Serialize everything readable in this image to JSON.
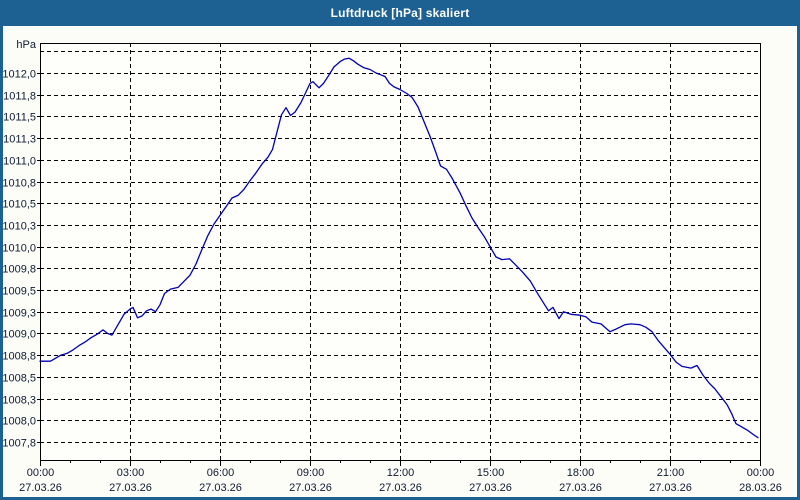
{
  "window": {
    "title": "Luftdruck [hPa] skaliert"
  },
  "colors": {
    "frame": "#1d6193",
    "titlebar": "#1d6193",
    "title_text": "#ffffff",
    "background": "#fdfdf8",
    "plot_background": "#fefefb",
    "gridline": "#000000",
    "plot_border": "#000000",
    "curve": "#0000b2",
    "axis_text": "#0e1b33"
  },
  "chart_data": {
    "type": "line",
    "title": "Luftdruck [hPa] skaliert",
    "y_unit_label": "hPa",
    "series_name": "Luftdruck",
    "grid": "dashed, both axes",
    "legend": "none",
    "y_axis": {
      "tick_step_hpa": 0.25,
      "top_unlabeled_gridline": 1012.25,
      "tick_values": [
        1012.0,
        1011.75,
        1011.5,
        1011.25,
        1011.0,
        1010.75,
        1010.5,
        1010.25,
        1010.0,
        1009.75,
        1009.5,
        1009.25,
        1009.0,
        1008.75,
        1008.5,
        1008.25,
        1008.0,
        1007.75
      ],
      "tick_labels": [
        "1012,0",
        "1011,8",
        "1011,5",
        "1011,3",
        "1011,0",
        "1010,8",
        "1010,5",
        "1010,3",
        "1010,0",
        "1009,8",
        "1009,5",
        "1009,3",
        "1009,0",
        "1008,8",
        "1008,5",
        "1008,3",
        "1008,0",
        "1007,8"
      ]
    },
    "x_axis": {
      "hours_span": 24,
      "major_step_hours": 3,
      "minor_step_hours": 1,
      "ticks": [
        {
          "hour": 0,
          "time": "00:00",
          "date": "27.03.26"
        },
        {
          "hour": 3,
          "time": "03:00",
          "date": "27.03.26"
        },
        {
          "hour": 6,
          "time": "06:00",
          "date": "27.03.26"
        },
        {
          "hour": 9,
          "time": "09:00",
          "date": "27.03.26"
        },
        {
          "hour": 12,
          "time": "12:00",
          "date": "27.03.26"
        },
        {
          "hour": 15,
          "time": "15:00",
          "date": "27.03.26"
        },
        {
          "hour": 18,
          "time": "18:00",
          "date": "27.03.26"
        },
        {
          "hour": 21,
          "time": "21:00",
          "date": "27.03.26"
        },
        {
          "hour": 24,
          "time": "00:00",
          "date": "28.03.26"
        }
      ]
    },
    "points": [
      [
        0.0,
        1008.68
      ],
      [
        0.35,
        1008.68
      ],
      [
        0.55,
        1008.72
      ],
      [
        0.7,
        1008.75
      ],
      [
        0.9,
        1008.77
      ],
      [
        1.1,
        1008.81
      ],
      [
        1.3,
        1008.86
      ],
      [
        1.5,
        1008.9
      ],
      [
        1.7,
        1008.95
      ],
      [
        1.9,
        1008.99
      ],
      [
        2.1,
        1009.04
      ],
      [
        2.25,
        1009.0
      ],
      [
        2.4,
        1008.98
      ],
      [
        2.6,
        1009.1
      ],
      [
        2.8,
        1009.22
      ],
      [
        3.0,
        1009.28
      ],
      [
        3.1,
        1009.3
      ],
      [
        3.25,
        1009.18
      ],
      [
        3.4,
        1009.2
      ],
      [
        3.55,
        1009.26
      ],
      [
        3.7,
        1009.28
      ],
      [
        3.85,
        1009.25
      ],
      [
        4.0,
        1009.33
      ],
      [
        4.15,
        1009.46
      ],
      [
        4.35,
        1009.51
      ],
      [
        4.6,
        1009.53
      ],
      [
        4.8,
        1009.6
      ],
      [
        5.0,
        1009.67
      ],
      [
        5.2,
        1009.8
      ],
      [
        5.4,
        1009.97
      ],
      [
        5.6,
        1010.13
      ],
      [
        5.8,
        1010.26
      ],
      [
        6.0,
        1010.36
      ],
      [
        6.2,
        1010.46
      ],
      [
        6.4,
        1010.56
      ],
      [
        6.6,
        1010.59
      ],
      [
        6.8,
        1010.66
      ],
      [
        7.0,
        1010.76
      ],
      [
        7.2,
        1010.85
      ],
      [
        7.4,
        1010.95
      ],
      [
        7.6,
        1011.03
      ],
      [
        7.75,
        1011.12
      ],
      [
        7.9,
        1011.32
      ],
      [
        8.05,
        1011.52
      ],
      [
        8.2,
        1011.6
      ],
      [
        8.35,
        1011.51
      ],
      [
        8.5,
        1011.55
      ],
      [
        8.7,
        1011.66
      ],
      [
        8.85,
        1011.77
      ],
      [
        9.0,
        1011.88
      ],
      [
        9.1,
        1011.9
      ],
      [
        9.3,
        1011.83
      ],
      [
        9.45,
        1011.88
      ],
      [
        9.6,
        1011.96
      ],
      [
        9.8,
        1012.07
      ],
      [
        10.0,
        1012.13
      ],
      [
        10.15,
        1012.16
      ],
      [
        10.3,
        1012.17
      ],
      [
        10.45,
        1012.14
      ],
      [
        10.6,
        1012.1
      ],
      [
        10.8,
        1012.06
      ],
      [
        11.0,
        1012.04
      ],
      [
        11.2,
        1012.0
      ],
      [
        11.35,
        1011.98
      ],
      [
        11.5,
        1011.96
      ],
      [
        11.65,
        1011.88
      ],
      [
        11.8,
        1011.84
      ],
      [
        12.0,
        1011.81
      ],
      [
        12.2,
        1011.77
      ],
      [
        12.4,
        1011.72
      ],
      [
        12.6,
        1011.61
      ],
      [
        12.8,
        1011.44
      ],
      [
        13.0,
        1011.27
      ],
      [
        13.2,
        1011.08
      ],
      [
        13.35,
        1010.93
      ],
      [
        13.55,
        1010.89
      ],
      [
        13.75,
        1010.78
      ],
      [
        14.0,
        1010.62
      ],
      [
        14.2,
        1010.47
      ],
      [
        14.4,
        1010.33
      ],
      [
        14.6,
        1010.22
      ],
      [
        14.8,
        1010.12
      ],
      [
        15.0,
        1010.0
      ],
      [
        15.2,
        1009.88
      ],
      [
        15.4,
        1009.85
      ],
      [
        15.65,
        1009.86
      ],
      [
        15.85,
        1009.79
      ],
      [
        16.1,
        1009.7
      ],
      [
        16.35,
        1009.6
      ],
      [
        16.55,
        1009.48
      ],
      [
        16.75,
        1009.37
      ],
      [
        16.95,
        1009.26
      ],
      [
        17.1,
        1009.3
      ],
      [
        17.3,
        1009.17
      ],
      [
        17.45,
        1009.25
      ],
      [
        17.7,
        1009.22
      ],
      [
        18.0,
        1009.21
      ],
      [
        18.2,
        1009.19
      ],
      [
        18.4,
        1009.13
      ],
      [
        18.7,
        1009.11
      ],
      [
        19.0,
        1009.02
      ],
      [
        19.2,
        1009.05
      ],
      [
        19.5,
        1009.1
      ],
      [
        19.7,
        1009.11
      ],
      [
        20.0,
        1009.1
      ],
      [
        20.2,
        1009.07
      ],
      [
        20.4,
        1009.02
      ],
      [
        20.6,
        1008.92
      ],
      [
        20.8,
        1008.84
      ],
      [
        21.0,
        1008.76
      ],
      [
        21.2,
        1008.67
      ],
      [
        21.4,
        1008.62
      ],
      [
        21.7,
        1008.6
      ],
      [
        21.9,
        1008.63
      ],
      [
        22.1,
        1008.52
      ],
      [
        22.3,
        1008.43
      ],
      [
        22.5,
        1008.36
      ],
      [
        22.7,
        1008.27
      ],
      [
        22.9,
        1008.18
      ],
      [
        23.05,
        1008.08
      ],
      [
        23.2,
        1007.96
      ],
      [
        23.4,
        1007.92
      ],
      [
        23.6,
        1007.88
      ],
      [
        23.8,
        1007.83
      ],
      [
        23.93,
        1007.8
      ]
    ]
  }
}
